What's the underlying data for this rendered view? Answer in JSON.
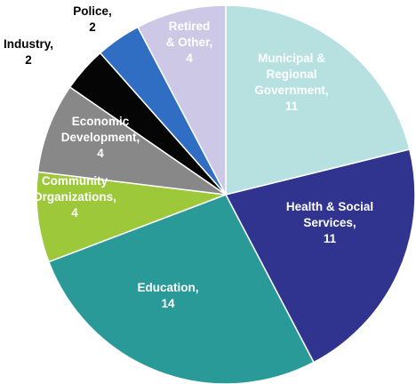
{
  "chart_data": {
    "type": "pie",
    "title": "",
    "slices": [
      {
        "lines": [
          "Municipal &",
          "Regional",
          "Government,",
          "11"
        ],
        "value": 11,
        "color": "#b7e0e0",
        "text_color": "#ffffff"
      },
      {
        "lines": [
          "Health & Social",
          "Services,",
          "11"
        ],
        "value": 11,
        "color": "#30348f",
        "text_color": "#ffffff"
      },
      {
        "lines": [
          "Education,",
          "14"
        ],
        "value": 14,
        "color": "#2a9a98",
        "text_color": "#ffffff"
      },
      {
        "lines": [
          "Community",
          "Organizations,",
          "4"
        ],
        "value": 4,
        "color": "#9cc83a",
        "text_color": "#ffffff"
      },
      {
        "lines": [
          "Economic",
          "Development,",
          "4"
        ],
        "value": 4,
        "color": "#888888",
        "text_color": "#ffffff"
      },
      {
        "lines": [
          "Industry,",
          "2"
        ],
        "value": 2,
        "color": "#050505",
        "text_color": "#000000"
      },
      {
        "lines": [
          "Police,",
          "2"
        ],
        "value": 2,
        "color": "#2f6ec2",
        "text_color": "#000000"
      },
      {
        "lines": [
          "Retired",
          "& Other,",
          "4"
        ],
        "value": 4,
        "color": "#ccc8e6",
        "text_color": "#ffffff"
      }
    ],
    "legend": "none",
    "start_angle": "12 o'clock",
    "direction": "clockwise"
  }
}
